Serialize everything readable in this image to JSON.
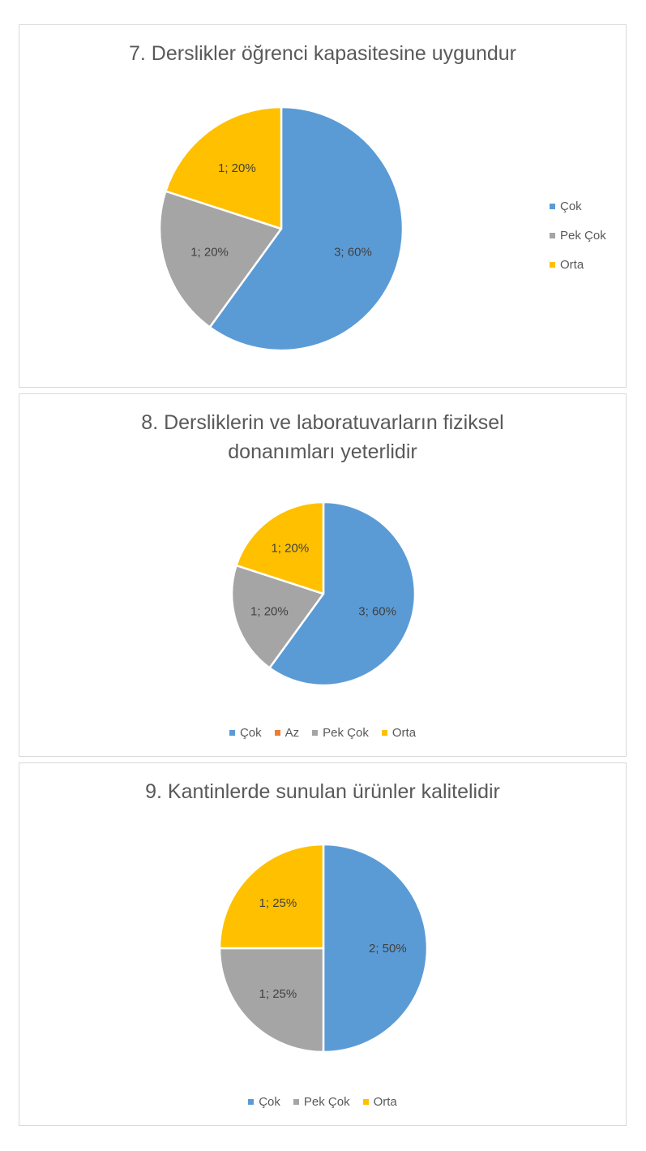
{
  "chart_data": [
    {
      "type": "pie",
      "title": "7. Derslikler öğrenci kapasitesine uygundur",
      "title_lines": [
        "7. Derslikler öğrenci kapasitesine uygundur"
      ],
      "slices": [
        {
          "name": "Çok",
          "value": 3,
          "label": "3; 60%",
          "color": "#5b9bd5"
        },
        {
          "name": "Pek Çok",
          "value": 1,
          "label": "1; 20%",
          "color": "#a5a5a5"
        },
        {
          "name": "Orta",
          "value": 1,
          "label": "1; 20%",
          "color": "#ffc000"
        }
      ],
      "legend": {
        "position": "right",
        "items": [
          {
            "name": "Çok",
            "color": "#5b9bd5"
          },
          {
            "name": "Pek Çok",
            "color": "#a5a5a5"
          },
          {
            "name": "Orta",
            "color": "#ffc000"
          }
        ]
      }
    },
    {
      "type": "pie",
      "title": "8. Dersliklerin ve laboratuvarların fiziksel donanımları yeterlidir",
      "title_lines": [
        "8. Dersliklerin ve laboratuvarların fiziksel",
        "donanımları yeterlidir"
      ],
      "slices": [
        {
          "name": "Çok",
          "value": 3,
          "label": "3; 60%",
          "color": "#5b9bd5"
        },
        {
          "name": "Pek Çok",
          "value": 1,
          "label": "1; 20%",
          "color": "#a5a5a5"
        },
        {
          "name": "Orta",
          "value": 1,
          "label": "1; 20%",
          "color": "#ffc000"
        }
      ],
      "legend": {
        "position": "bottom",
        "items": [
          {
            "name": "Çok",
            "color": "#5b9bd5"
          },
          {
            "name": "Az",
            "color": "#ed7d31"
          },
          {
            "name": "Pek Çok",
            "color": "#a5a5a5"
          },
          {
            "name": "Orta",
            "color": "#ffc000"
          }
        ]
      }
    },
    {
      "type": "pie",
      "title": "9. Kantinlerde sunulan ürünler kalitelidir",
      "title_lines": [
        "9. Kantinlerde sunulan ürünler kalitelidir"
      ],
      "slices": [
        {
          "name": "Çok",
          "value": 2,
          "label": "2; 50%",
          "color": "#5b9bd5"
        },
        {
          "name": "Pek Çok",
          "value": 1,
          "label": "1; 25%",
          "color": "#a5a5a5"
        },
        {
          "name": "Orta",
          "value": 1,
          "label": "1; 25%",
          "color": "#ffc000"
        }
      ],
      "legend": {
        "position": "bottom",
        "items": [
          {
            "name": "Çok",
            "color": "#5b9bd5"
          },
          {
            "name": "Pek Çok",
            "color": "#a5a5a5"
          },
          {
            "name": "Orta",
            "color": "#ffc000"
          }
        ]
      }
    }
  ]
}
